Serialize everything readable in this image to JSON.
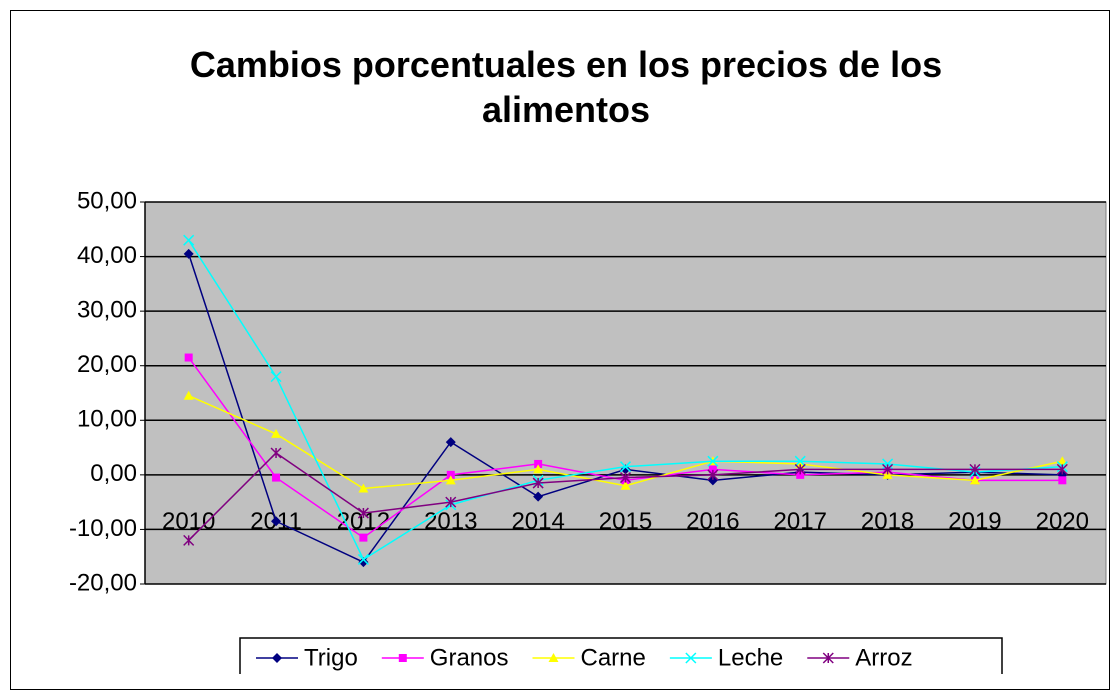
{
  "chart_data": {
    "type": "line",
    "title": "Cambios porcentuales en los precios de los alimentos",
    "categories": [
      "2010",
      "2011",
      "2012",
      "2013",
      "2014",
      "2015",
      "2016",
      "2017",
      "2018",
      "2019",
      "2020"
    ],
    "series": [
      {
        "name": "Trigo",
        "color": "#000080",
        "marker": "diamond",
        "values": [
          40.5,
          -8.5,
          -16,
          6,
          -4,
          1,
          -1,
          0.5,
          0,
          0.5,
          0
        ]
      },
      {
        "name": "Granos",
        "color": "#ff00ff",
        "marker": "square",
        "values": [
          21.5,
          -0.5,
          -11.5,
          0,
          2,
          -1,
          1,
          0,
          0.5,
          -1,
          -1
        ]
      },
      {
        "name": "Carne",
        "color": "#ffff00",
        "marker": "triangle",
        "values": [
          14.5,
          7.5,
          -2.5,
          -1,
          1,
          -2,
          2.5,
          2,
          0,
          -1,
          2.5
        ]
      },
      {
        "name": "Leche",
        "color": "#00ffff",
        "marker": "x",
        "values": [
          43,
          18,
          -15.5,
          -5.5,
          -1,
          1.5,
          2.5,
          2.5,
          2,
          0.5,
          1.5
        ]
      },
      {
        "name": "Arroz",
        "color": "#800080",
        "marker": "star",
        "values": [
          -12,
          4,
          -7,
          -5,
          -1.5,
          -0.5,
          0,
          1,
          1,
          1,
          1
        ]
      }
    ],
    "ylim": [
      -20,
      50
    ],
    "yticks": [
      {
        "value": -20,
        "label": "-20,00"
      },
      {
        "value": -10,
        "label": "-10,00"
      },
      {
        "value": 0,
        "label": "0,00"
      },
      {
        "value": 10,
        "label": "10,00"
      },
      {
        "value": 20,
        "label": "20,00"
      },
      {
        "value": 30,
        "label": "30,00"
      },
      {
        "value": 40,
        "label": "40,00"
      },
      {
        "value": 50,
        "label": "50,00"
      }
    ],
    "grid": true,
    "plot_background": "#c0c0c0",
    "legend": "bottom"
  }
}
